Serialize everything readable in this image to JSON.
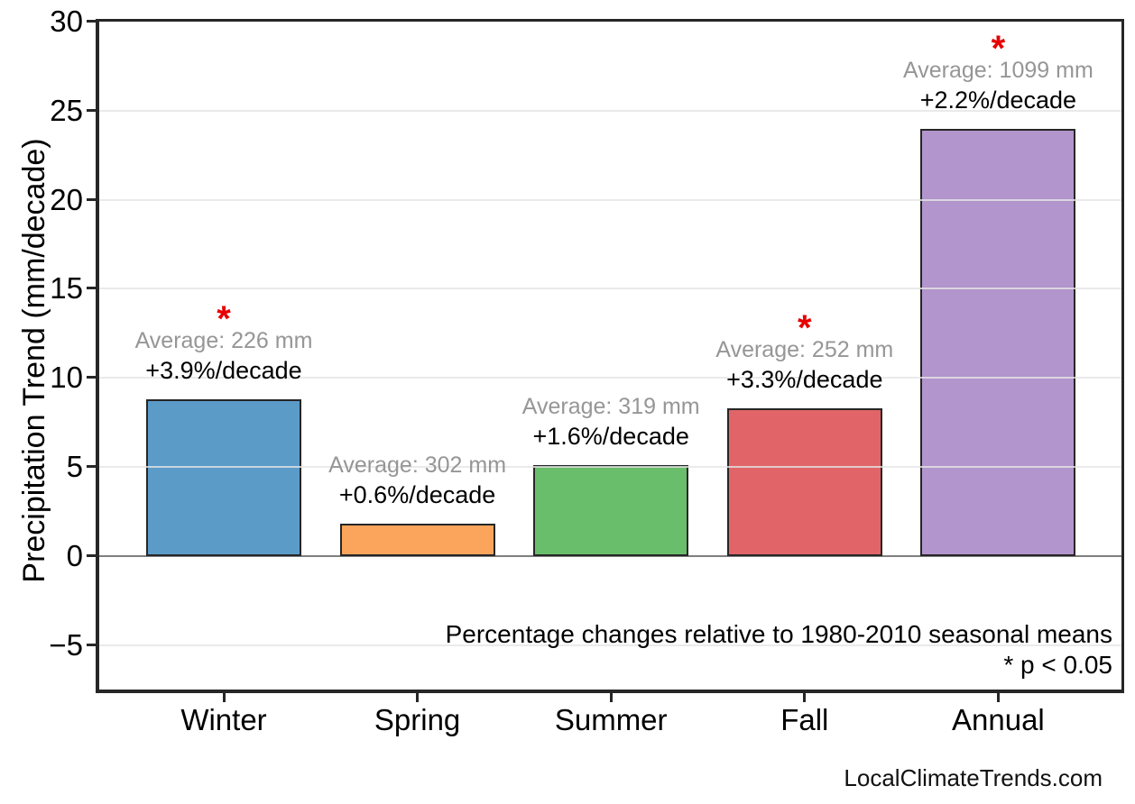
{
  "watermark": "LocalClimateTrends.com",
  "chart_data": {
    "type": "bar",
    "title": "",
    "xlabel": "",
    "ylabel": "Precipitation Trend (mm/decade)",
    "ylim": [
      -7.5,
      30
    ],
    "yticks": [
      30,
      25,
      20,
      15,
      10,
      5,
      0,
      -5
    ],
    "grid": true,
    "legend": "none",
    "categories": [
      "Winter",
      "Spring",
      "Summer",
      "Fall",
      "Annual"
    ],
    "values": [
      8.8,
      1.8,
      5.1,
      8.3,
      24.0
    ],
    "bars": [
      {
        "category": "Winter",
        "trend_mm_per_decade": 8.8,
        "average_mm": 226,
        "average_label": "Average: 226 mm",
        "trend_label": "+3.9%/decade",
        "significant": true,
        "color": "#5B9BC8"
      },
      {
        "category": "Spring",
        "trend_mm_per_decade": 1.8,
        "average_mm": 302,
        "average_label": "Average: 302 mm",
        "trend_label": "+0.6%/decade",
        "significant": false,
        "color": "#FBA55C"
      },
      {
        "category": "Summer",
        "trend_mm_per_decade": 5.1,
        "average_mm": 319,
        "average_label": "Average: 319 mm",
        "trend_label": "+1.6%/decade",
        "significant": false,
        "color": "#69BE6B"
      },
      {
        "category": "Fall",
        "trend_mm_per_decade": 8.3,
        "average_mm": 252,
        "average_label": "Average: 252 mm",
        "trend_label": "+3.3%/decade",
        "significant": true,
        "color": "#E16568"
      },
      {
        "category": "Annual",
        "trend_mm_per_decade": 24.0,
        "average_mm": 1099,
        "average_label": "Average: 1099 mm",
        "trend_label": "+2.2%/decade",
        "significant": true,
        "color": "#B295CC"
      }
    ],
    "significance_marker": "*",
    "note_line1": "Percentage changes relative to 1980-2010 seasonal means",
    "note_line2": "* p < 0.05",
    "colors": {
      "bar_edge": "#262626",
      "gridline": "#E5E5E5",
      "zero_line": "#7F7F7F",
      "asterisk": "#E60000",
      "average_text": "#969696",
      "trend_text": "#000000"
    }
  }
}
